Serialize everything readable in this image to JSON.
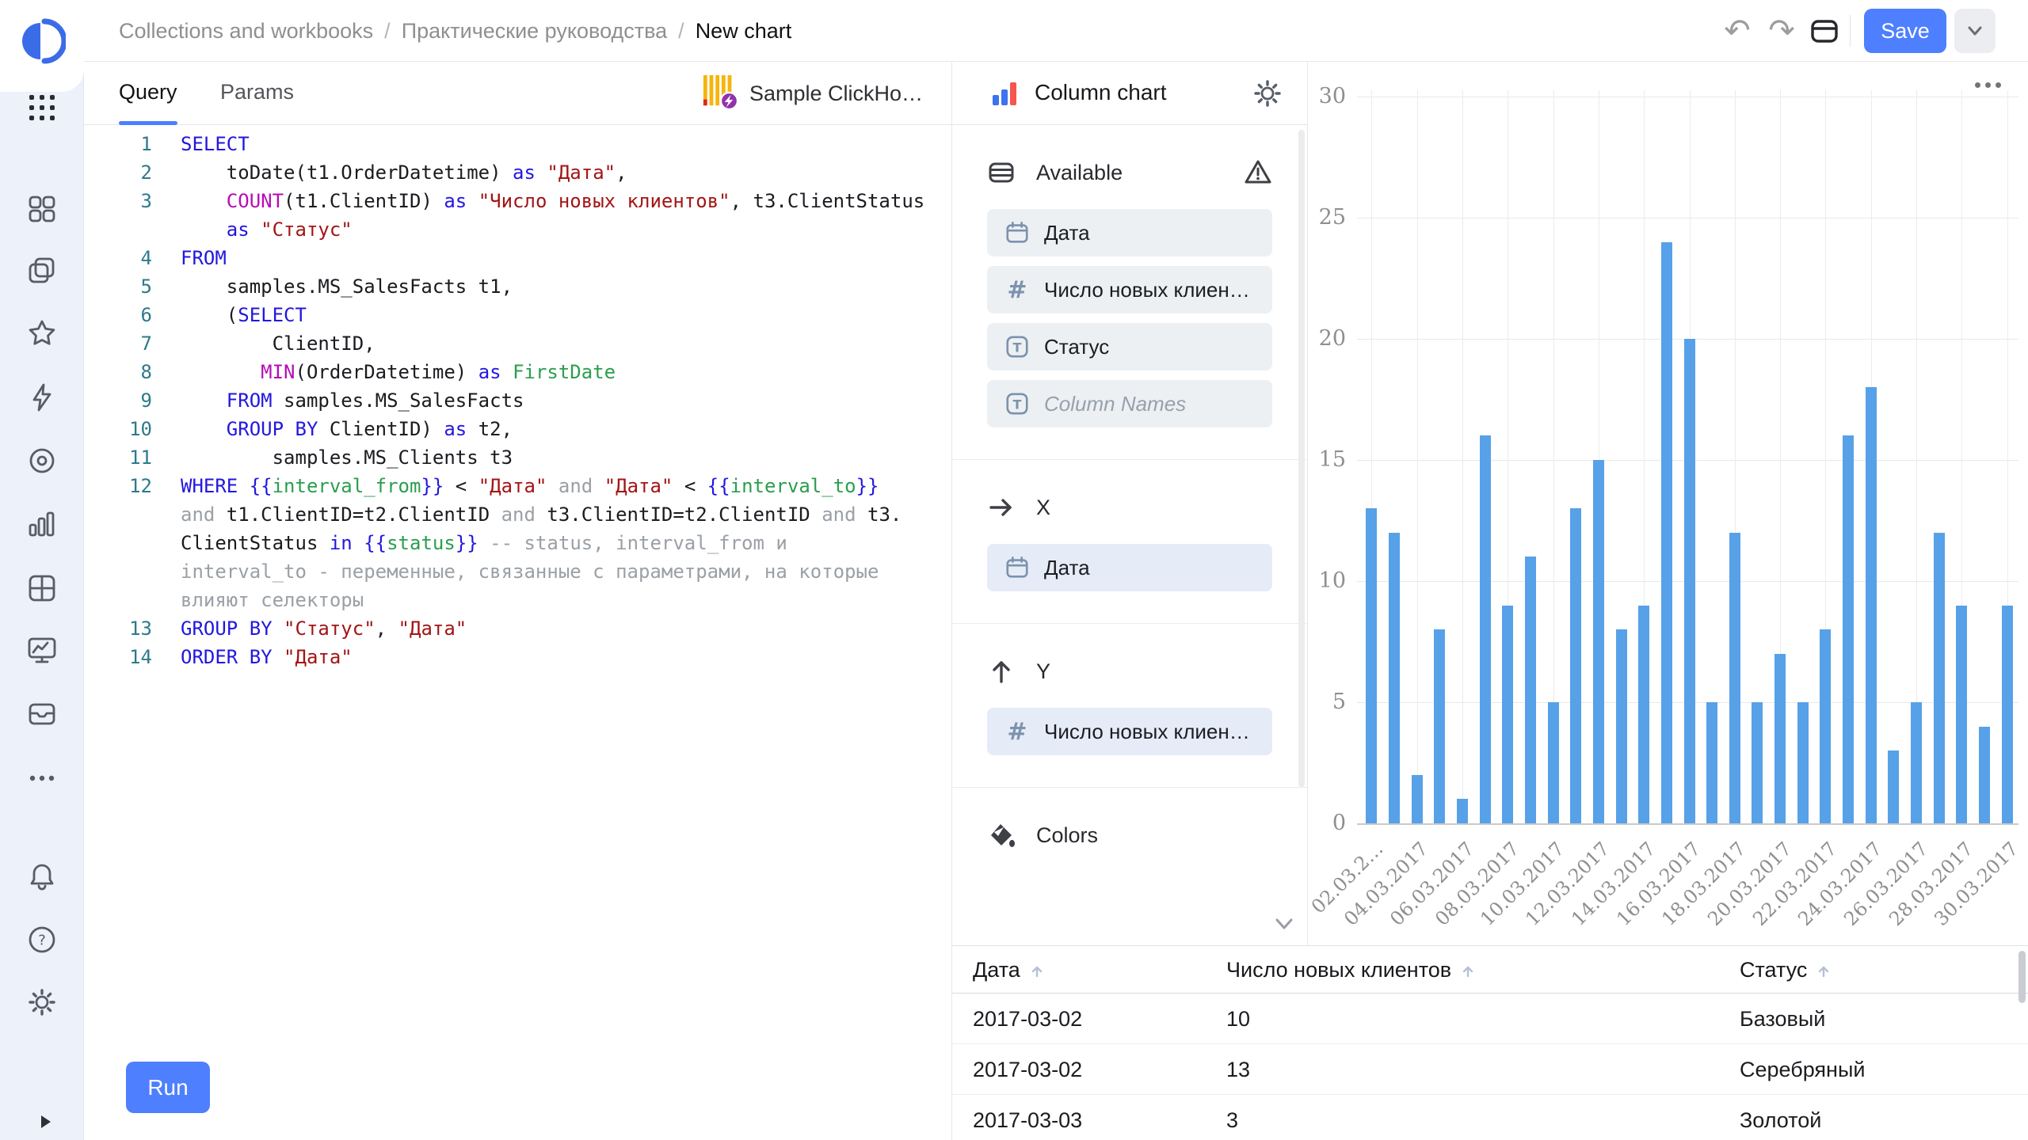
{
  "colors": {
    "accent": "#4e7fff",
    "bar": "#57a1e8",
    "rail_bg": "#edf1f9"
  },
  "sidebar": {
    "logo": "datalens-logo",
    "top_icons": [
      "apps-grid-icon"
    ],
    "nav_icons": [
      "four-squares-icon",
      "layers-icon",
      "star-icon",
      "lightning-icon",
      "donut-icon",
      "bar-chart-icon",
      "grid-icon",
      "monitor-icon",
      "box-icon",
      "ellipsis-icon"
    ],
    "bottom_icons": [
      "bell-icon",
      "question-icon",
      "gear-icon"
    ],
    "expand_icon": "expand-icon"
  },
  "topbar": {
    "breadcrumb": [
      "Collections and workbooks",
      "Практические руководства",
      "New chart"
    ],
    "save_label": "Save"
  },
  "query_panel": {
    "tabs": [
      {
        "label": "Query",
        "active": true
      },
      {
        "label": "Params",
        "active": false
      }
    ],
    "connection": {
      "name": "Sample ClickHo…",
      "icon": "clickhouse-icon"
    },
    "run_label": "Run",
    "sql_lines": [
      {
        "no": "1",
        "tokens": [
          [
            "k",
            "SELECT"
          ]
        ]
      },
      {
        "no": "2",
        "tokens": [
          [
            "p",
            "    toDate(t1.OrderDatetime) "
          ],
          [
            "k",
            "as"
          ],
          [
            "p",
            " "
          ],
          [
            "s",
            "\"Дата\""
          ],
          [
            "p",
            ","
          ]
        ]
      },
      {
        "no": "3",
        "tokens": [
          [
            "p",
            "    "
          ],
          [
            "f",
            "COUNT"
          ],
          [
            "p",
            "(t1.ClientID) "
          ],
          [
            "k",
            "as"
          ],
          [
            "p",
            " "
          ],
          [
            "s",
            "\"Число новых клиентов\""
          ],
          [
            "p",
            ", t3.ClientStatus"
          ]
        ]
      },
      {
        "no": "",
        "tokens": [
          [
            "p",
            "    "
          ],
          [
            "k",
            "as"
          ],
          [
            "p",
            " "
          ],
          [
            "s",
            "\"Статус\""
          ]
        ]
      },
      {
        "no": "4",
        "tokens": [
          [
            "k",
            "FROM"
          ]
        ]
      },
      {
        "no": "5",
        "tokens": [
          [
            "p",
            "    samples.MS_SalesFacts t1,"
          ]
        ]
      },
      {
        "no": "6",
        "tokens": [
          [
            "p",
            "    ("
          ],
          [
            "k",
            "SELECT"
          ]
        ]
      },
      {
        "no": "7",
        "tokens": [
          [
            "p",
            "        ClientID,"
          ]
        ]
      },
      {
        "no": "8",
        "tokens": [
          [
            "p",
            "       "
          ],
          [
            "f",
            "MIN"
          ],
          [
            "p",
            "(OrderDatetime) "
          ],
          [
            "k",
            "as"
          ],
          [
            "p",
            " "
          ],
          [
            "v",
            "FirstDate"
          ]
        ]
      },
      {
        "no": "9",
        "tokens": [
          [
            "p",
            "    "
          ],
          [
            "k",
            "FROM"
          ],
          [
            "p",
            " samples.MS_SalesFacts"
          ]
        ]
      },
      {
        "no": "10",
        "tokens": [
          [
            "p",
            "    "
          ],
          [
            "k",
            "GROUP BY"
          ],
          [
            "p",
            " ClientID) "
          ],
          [
            "k",
            "as"
          ],
          [
            "p",
            " t2,"
          ]
        ]
      },
      {
        "no": "11",
        "tokens": [
          [
            "p",
            "        samples.MS_Clients t3"
          ]
        ]
      },
      {
        "no": "12",
        "tokens": [
          [
            "k",
            "WHERE"
          ],
          [
            "p",
            " "
          ],
          [
            "b",
            "{{"
          ],
          [
            "v",
            "interval_from"
          ],
          [
            "b",
            "}}"
          ],
          [
            "p",
            " < "
          ],
          [
            "s",
            "\"Дата\""
          ],
          [
            "p",
            " "
          ],
          [
            "c",
            "and"
          ],
          [
            "p",
            " "
          ],
          [
            "s",
            "\"Дата\""
          ],
          [
            "p",
            " < "
          ],
          [
            "b",
            "{{"
          ],
          [
            "v",
            "interval_to"
          ],
          [
            "b",
            "}}"
          ]
        ]
      },
      {
        "no": "",
        "tokens": [
          [
            "c",
            "and"
          ],
          [
            "p",
            " t1.ClientID=t2.ClientID "
          ],
          [
            "c",
            "and"
          ],
          [
            "p",
            " t3.ClientID=t2.ClientID "
          ],
          [
            "c",
            "and"
          ],
          [
            "p",
            " t3."
          ]
        ]
      },
      {
        "no": "",
        "tokens": [
          [
            "p",
            "ClientStatus "
          ],
          [
            "k",
            "in"
          ],
          [
            "p",
            " "
          ],
          [
            "b",
            "{{"
          ],
          [
            "v",
            "status"
          ],
          [
            "b",
            "}}"
          ],
          [
            "p",
            " "
          ],
          [
            "c",
            "-- status, interval_from и"
          ]
        ]
      },
      {
        "no": "",
        "tokens": [
          [
            "c",
            "interval_to - переменные, связанные с параметрами, на которые"
          ]
        ]
      },
      {
        "no": "",
        "tokens": [
          [
            "c",
            "влияют селекторы"
          ]
        ]
      },
      {
        "no": "13",
        "tokens": [
          [
            "k",
            "GROUP BY"
          ],
          [
            "p",
            " "
          ],
          [
            "s",
            "\"Статус\""
          ],
          [
            "p",
            ", "
          ],
          [
            "s",
            "\"Дата\""
          ]
        ]
      },
      {
        "no": "14",
        "tokens": [
          [
            "k",
            "ORDER BY"
          ],
          [
            "p",
            " "
          ],
          [
            "s",
            "\"Дата\""
          ]
        ]
      }
    ]
  },
  "settings": {
    "title": "Column chart",
    "sections": [
      {
        "id": "available",
        "label": "Available",
        "icon": "rows-icon",
        "warn": true,
        "pills": [
          {
            "icon": "calendar-icon",
            "label": "Дата"
          },
          {
            "icon": "hash-icon",
            "label": "Число новых клиен…"
          },
          {
            "icon": "text-icon",
            "label": "Статус"
          },
          {
            "icon": "text-icon",
            "label": "Column Names",
            "placeholder": true
          }
        ]
      },
      {
        "id": "x",
        "label": "X",
        "icon": "arrow-right-icon",
        "pills": [
          {
            "icon": "calendar-icon",
            "label": "Дата",
            "placed": true
          }
        ]
      },
      {
        "id": "y",
        "label": "Y",
        "icon": "arrow-up-icon",
        "pills": [
          {
            "icon": "hash-icon",
            "label": "Число новых клиен…",
            "placed": true
          }
        ]
      },
      {
        "id": "colors",
        "label": "Colors",
        "icon": "bucket-icon",
        "pills": []
      }
    ]
  },
  "chart_data": {
    "type": "bar",
    "title": "",
    "xlabel": "",
    "ylabel": "",
    "ylim": [
      0,
      30
    ],
    "yticks": [
      0,
      5,
      10,
      15,
      20,
      25,
      30
    ],
    "grid": true,
    "legend": false,
    "bar_color": "#57a1e8",
    "x": [
      "02.03.2017",
      "03.03.2017",
      "04.03.2017",
      "05.03.2017",
      "06.03.2017",
      "07.03.2017",
      "08.03.2017",
      "09.03.2017",
      "10.03.2017",
      "11.03.2017",
      "12.03.2017",
      "13.03.2017",
      "14.03.2017",
      "15.03.2017",
      "16.03.2017",
      "17.03.2017",
      "18.03.2017",
      "19.03.2017",
      "20.03.2017",
      "21.03.2017",
      "22.03.2017",
      "23.03.2017",
      "24.03.2017",
      "25.03.2017",
      "26.03.2017",
      "27.03.2017",
      "28.03.2017",
      "29.03.2017",
      "30.03.2017"
    ],
    "values": [
      13,
      12,
      2,
      8,
      1,
      16,
      9,
      11,
      5,
      13,
      15,
      8,
      9,
      24,
      20,
      5,
      12,
      5,
      7,
      5,
      8,
      16,
      18,
      3,
      5,
      12,
      9,
      4,
      9
    ],
    "xtick_labels": [
      "02.03.2…",
      "04.03.2017",
      "06.03.2017",
      "08.03.2017",
      "10.03.2017",
      "12.03.2017",
      "14.03.2017",
      "16.03.2017",
      "18.03.2017",
      "20.03.2017",
      "22.03.2017",
      "24.03.2017",
      "26.03.2017",
      "28.03.2017",
      "30.03.2017"
    ]
  },
  "table": {
    "columns": [
      "Дата",
      "Число новых клиентов",
      "Статус"
    ],
    "rows": [
      [
        "2017-03-02",
        "10",
        "Базовый"
      ],
      [
        "2017-03-02",
        "13",
        "Серебряный"
      ],
      [
        "2017-03-03",
        "3",
        "Золотой"
      ]
    ]
  }
}
